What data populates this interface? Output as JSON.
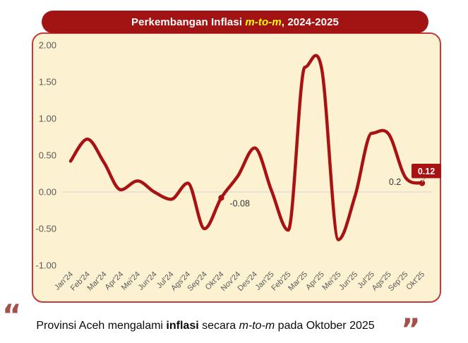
{
  "title": {
    "part1": "Perkembangan Inflasi ",
    "highlight": "m-to-m",
    "part2": ", 2024-2025"
  },
  "colors": {
    "banner_bg": "#A21414",
    "title_text": "#FFFFFF",
    "title_highlight": "#FFFF00",
    "panel_bg": "#FCF2D2",
    "panel_border": "#C13B3B",
    "line": "#A81212",
    "gridline": "#D9D9D9",
    "axis_text": "#595959",
    "annotation_text": "#333333",
    "callout_bg": "#A81212",
    "callout_text": "#FFFFFF",
    "leader_line": "#A6A6A6",
    "quote": "#A45249",
    "caption_text": "#0A0A0A"
  },
  "chart_data": {
    "type": "line",
    "title": "Perkembangan Inflasi m-to-m, 2024-2025",
    "categories": [
      "Jan'24",
      "Feb'24",
      "Mar'24",
      "Apr'24",
      "Mei'24",
      "Jun'24",
      "Jul'24",
      "Ags'24",
      "Sep'24",
      "Okt'24",
      "Nov'24",
      "Des'24",
      "Jan'25",
      "Feb'25",
      "Mar'25",
      "Apr'25",
      "Mei'25",
      "Jun'25",
      "Jul'25",
      "Ags'25",
      "Sep'25",
      "Okt'25"
    ],
    "values": [
      0.42,
      0.72,
      0.4,
      0.03,
      0.15,
      0.0,
      -0.1,
      0.12,
      -0.5,
      -0.08,
      0.22,
      0.6,
      0.02,
      -0.52,
      1.7,
      1.68,
      -0.65,
      -0.05,
      0.8,
      0.79,
      0.2,
      0.12
    ],
    "ylim": [
      -1.0,
      2.0
    ],
    "ytick_labels": [
      "2.00",
      "1.50",
      "1.00",
      "0.50",
      "0.00",
      "-0.50",
      "-1.00"
    ],
    "ytick_values": [
      2,
      1.5,
      1,
      0.5,
      0,
      -0.5,
      -1
    ],
    "grid": "zero-line-only",
    "legend": "none",
    "smooth": true,
    "line_color": "#A81212",
    "marker_months": [
      "Okt'24",
      "Okt'25"
    ],
    "annotations": [
      {
        "month": "Okt'24",
        "text": "-0.08",
        "style": "plain-right"
      },
      {
        "month": "Sep'25",
        "text": "0.2",
        "style": "plain-left"
      },
      {
        "month": "Okt'25",
        "text": "0.12",
        "style": "callout"
      }
    ]
  },
  "caption": {
    "open_quote": "“",
    "close_quote": "”",
    "part1": "Provinsi Aceh mengalami ",
    "part2": "inflasi",
    "part3": " secara ",
    "part4": "m-to-m",
    "part5": " pada Oktober 2025"
  }
}
